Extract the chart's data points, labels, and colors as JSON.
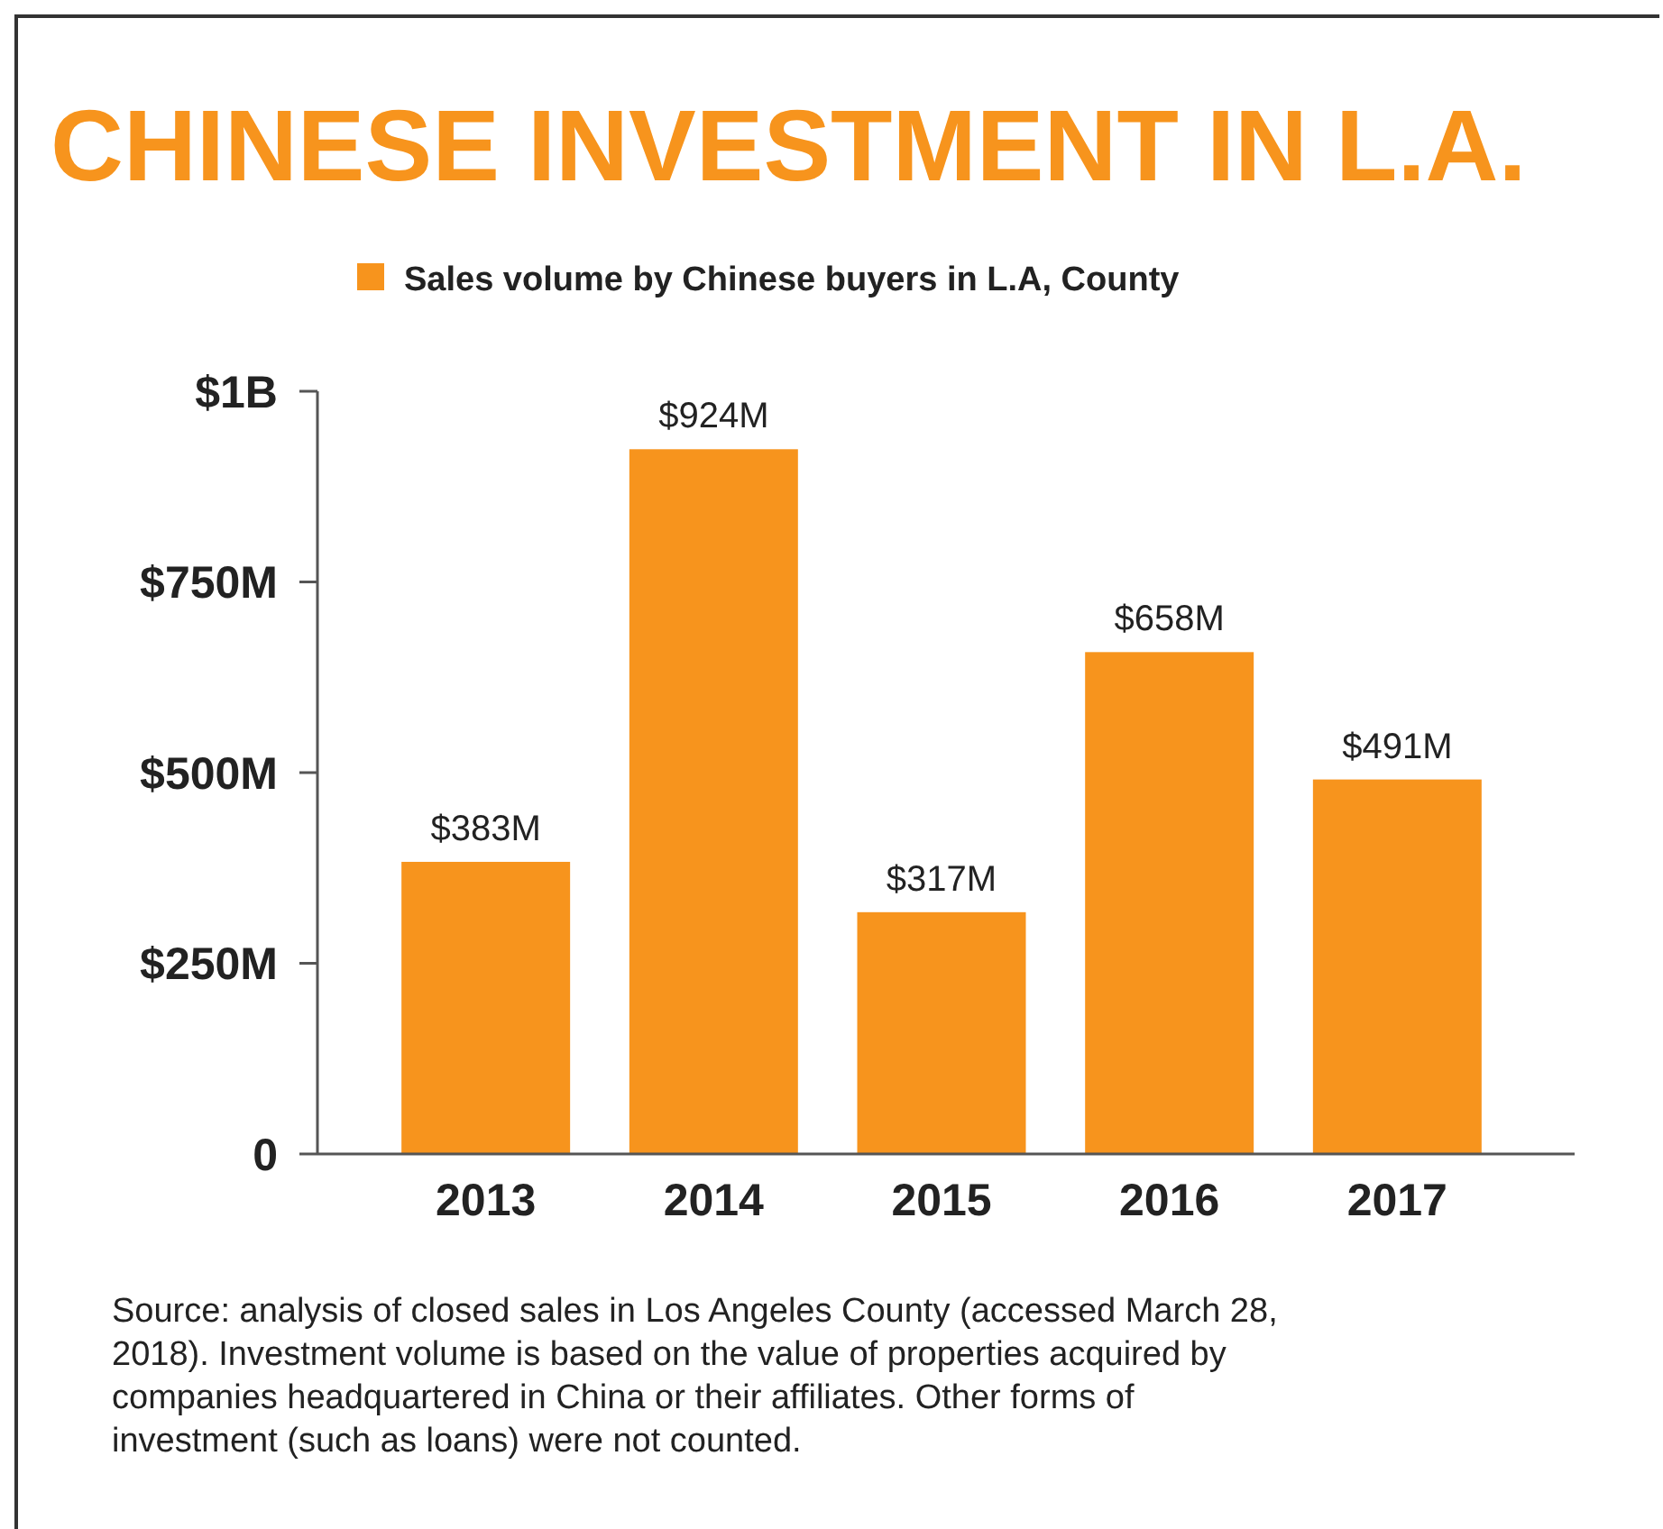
{
  "chart_data": {
    "type": "bar",
    "title": "CHINESE INVESTMENT IN L.A.",
    "categories": [
      "2013",
      "2014",
      "2015",
      "2016",
      "2017"
    ],
    "series": [
      {
        "name": "Sales volume by Chinese buyers in L.A, County",
        "color": "#f7941d",
        "values": [
          383000000,
          924000000,
          317000000,
          658000000,
          491000000
        ],
        "value_labels": [
          "$383M",
          "$924M",
          "$317M",
          "$658M",
          "$491M"
        ]
      }
    ],
    "ylim": [
      0,
      1000000000
    ],
    "yticks": [
      {
        "value": 0,
        "label": "0"
      },
      {
        "value": 250000000,
        "label": "$250M"
      },
      {
        "value": 500000000,
        "label": "$500M"
      },
      {
        "value": 750000000,
        "label": "$750M"
      },
      {
        "value": 1000000000,
        "label": "$1B"
      }
    ],
    "grid": false,
    "legend": "top",
    "annotations": [
      "Source: analysis of closed sales in Los Angeles County (accessed March 28, 2018). Investment volume is based on the value of properties acquired by companies headquartered in China or their affiliates. Other forms of investment (such as loans) were not counted."
    ]
  }
}
